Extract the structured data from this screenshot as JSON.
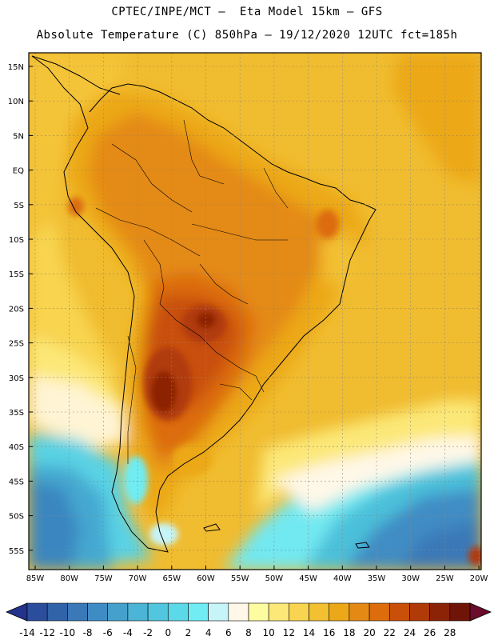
{
  "title_line1": "CPTEC/INPE/MCT –  Eta Model 15km – GFS",
  "title_line2": "Absolute Temperature (C) 850hPa – 19/12/2020 12UTC fct=185h",
  "lat_labels": [
    "15N",
    "10N",
    "5N",
    "EQ",
    "5S",
    "10S",
    "15S",
    "20S",
    "25S",
    "30S",
    "35S",
    "40S",
    "45S",
    "50S",
    "55S"
  ],
  "lon_labels": [
    "85W",
    "80W",
    "75W",
    "70W",
    "65W",
    "60W",
    "55W",
    "50W",
    "45W",
    "40W",
    "35W",
    "30W",
    "25W",
    "20W"
  ],
  "colorbar": {
    "labels": [
      "-14",
      "-12",
      "-10",
      "-8",
      "-6",
      "-4",
      "-2",
      "0",
      "2",
      "4",
      "6",
      "8",
      "10",
      "12",
      "14",
      "16",
      "18",
      "20",
      "22",
      "24",
      "26",
      "28"
    ],
    "colors": [
      "#2a4d9c",
      "#3063a8",
      "#3a78b8",
      "#3f8cc4",
      "#45a1cc",
      "#4cb4d6",
      "#52c6df",
      "#5cd9e8",
      "#70ecf2",
      "#c6f4f8",
      "#fff8e8",
      "#fefca0",
      "#fce878",
      "#f8d450",
      "#f2c030",
      "#eca818",
      "#e48a14",
      "#dc6c0c",
      "#c85008",
      "#b03a08",
      "#8c2206",
      "#701408"
    ],
    "under_color": "#23328a",
    "over_color": "#6a0c2a"
  }
}
